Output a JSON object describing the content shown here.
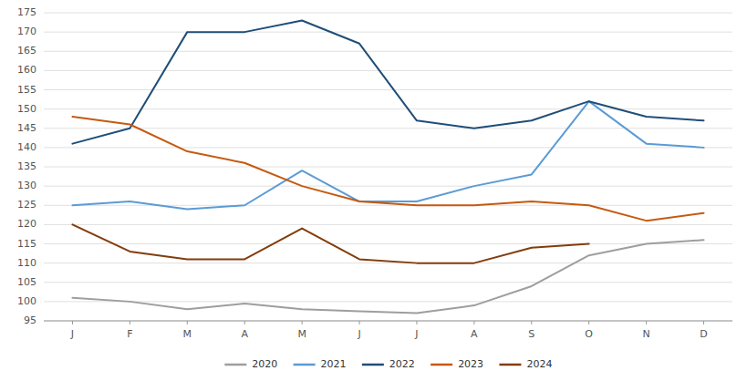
{
  "chart_data": {
    "type": "line",
    "categories": [
      "J",
      "F",
      "M",
      "A",
      "M",
      "J",
      "J",
      "A",
      "S",
      "O",
      "N",
      "D"
    ],
    "series": [
      {
        "name": "2020",
        "color": "#9E9E9E",
        "values": [
          101,
          100,
          98,
          99.5,
          98,
          97.5,
          97,
          99,
          104,
          112,
          115,
          116
        ]
      },
      {
        "name": "2021",
        "color": "#5B9BD5",
        "values": [
          125,
          126,
          124,
          125,
          134,
          126,
          126,
          130,
          133,
          152,
          141,
          140
        ]
      },
      {
        "name": "2022",
        "color": "#1F4E79",
        "values": [
          141,
          145,
          170,
          170,
          173,
          167,
          147,
          145,
          147,
          152,
          148,
          147
        ]
      },
      {
        "name": "2023",
        "color": "#C55A11",
        "values": [
          148,
          146,
          139,
          136,
          130,
          126,
          125,
          125,
          126,
          125,
          121,
          123
        ]
      },
      {
        "name": "2024",
        "color": "#843C0C",
        "values": [
          120,
          113,
          111,
          111,
          119,
          111,
          110,
          110,
          114,
          115,
          null,
          null
        ]
      }
    ],
    "ylim": [
      95,
      175
    ],
    "yticks": [
      95,
      100,
      105,
      110,
      115,
      120,
      125,
      130,
      135,
      140,
      145,
      150,
      155,
      160,
      165,
      170,
      175
    ],
    "grid": true,
    "legend": "bottom"
  }
}
